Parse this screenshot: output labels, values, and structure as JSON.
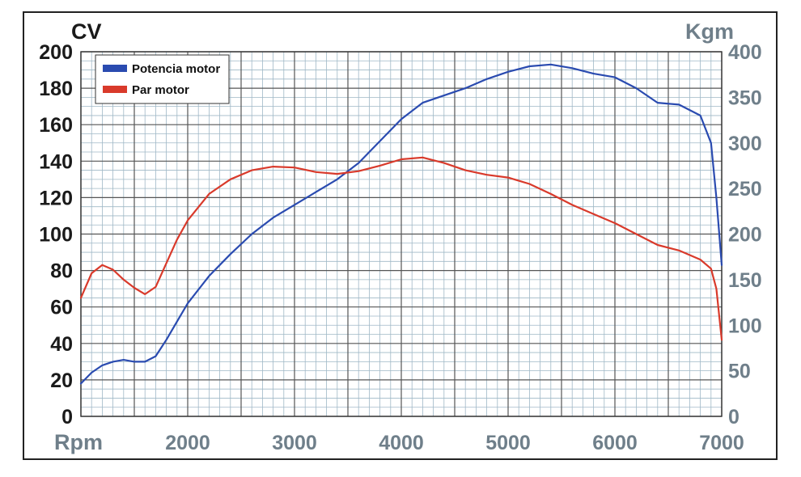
{
  "chart_data": {
    "type": "line",
    "xlabel": "Rpm",
    "ylabel_left": "CV",
    "ylabel_right": "Kgm",
    "xlim": [
      1000,
      7000
    ],
    "ylim_left": [
      0,
      200
    ],
    "ylim_right": [
      0,
      400
    ],
    "x_ticks": [
      2000,
      3000,
      4000,
      5000,
      6000,
      7000
    ],
    "x_tick_labels": [
      "2000",
      "3000",
      "4000",
      "5000",
      "6000",
      "7000"
    ],
    "y_left_ticks": [
      0,
      20,
      40,
      60,
      80,
      100,
      120,
      140,
      160,
      180,
      200
    ],
    "y_left_tick_labels": [
      "0",
      "20",
      "40",
      "60",
      "80",
      "100",
      "120",
      "140",
      "160",
      "180",
      "200"
    ],
    "y_right_ticks": [
      0,
      50,
      100,
      150,
      200,
      250,
      300,
      350,
      400
    ],
    "y_right_tick_labels": [
      "0",
      "50",
      "100",
      "150",
      "200",
      "250",
      "300",
      "350",
      "400"
    ],
    "grid": true,
    "legend_position": "top-left",
    "series": [
      {
        "name": "Potencia motor",
        "color": "#2a4bb0",
        "axis": "left",
        "x": [
          1000,
          1100,
          1200,
          1300,
          1400,
          1500,
          1600,
          1700,
          1800,
          1900,
          2000,
          2200,
          2400,
          2600,
          2800,
          3000,
          3200,
          3400,
          3600,
          3800,
          4000,
          4200,
          4400,
          4600,
          4800,
          5000,
          5200,
          5400,
          5600,
          5800,
          6000,
          6200,
          6400,
          6600,
          6800,
          6900,
          6950,
          7000
        ],
        "y": [
          18,
          24,
          28,
          30,
          31,
          30,
          30,
          33,
          42,
          52,
          62,
          77,
          89,
          100,
          109,
          116,
          123,
          130,
          139,
          151,
          163,
          172,
          176,
          180,
          185,
          189,
          192,
          193,
          191,
          188,
          186,
          180,
          172,
          171,
          165,
          150,
          120,
          83
        ]
      },
      {
        "name": "Par motor",
        "color": "#d93a2b",
        "axis": "right",
        "x": [
          1000,
          1100,
          1200,
          1300,
          1400,
          1500,
          1600,
          1700,
          1800,
          1900,
          2000,
          2200,
          2400,
          2600,
          2800,
          3000,
          3200,
          3400,
          3600,
          3800,
          4000,
          4200,
          4400,
          4600,
          4800,
          5000,
          5200,
          5400,
          5600,
          5800,
          6000,
          6200,
          6400,
          6600,
          6800,
          6900,
          6950,
          7000
        ],
        "y": [
          130,
          157,
          166,
          161,
          150,
          141,
          134,
          142,
          168,
          194,
          215,
          244,
          260,
          270,
          274,
          273,
          268,
          266,
          269,
          275,
          282,
          284,
          278,
          270,
          265,
          262,
          255,
          244,
          232,
          222,
          212,
          200,
          188,
          182,
          172,
          162,
          140,
          84
        ]
      }
    ]
  }
}
